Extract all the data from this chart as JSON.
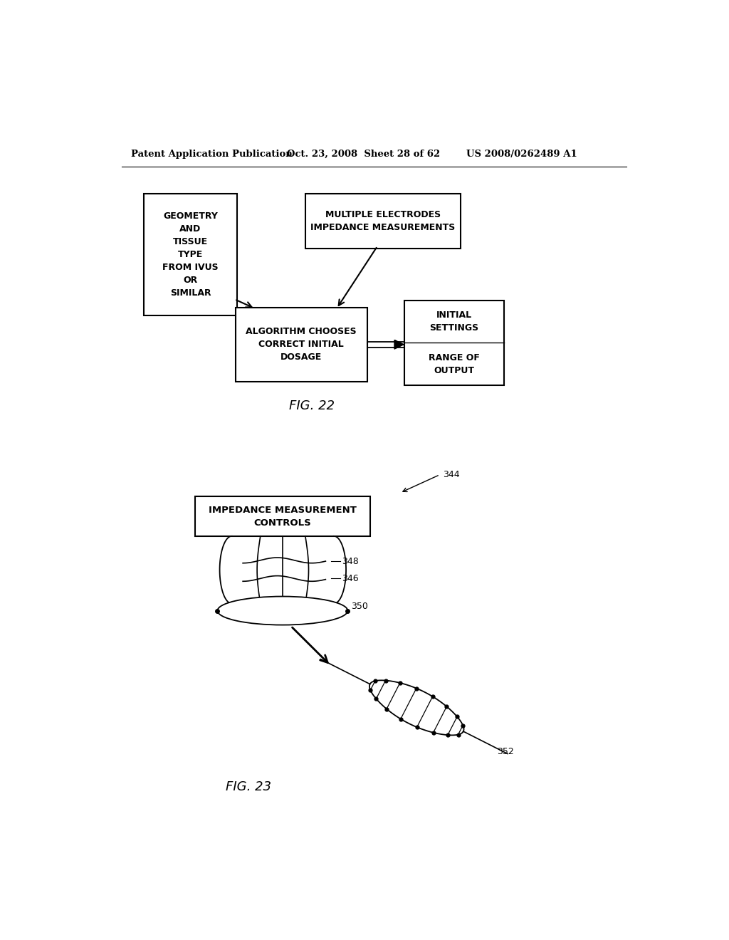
{
  "bg_color": "#ffffff",
  "header_left": "Patent Application Publication",
  "header_mid": "Oct. 23, 2008  Sheet 28 of 62",
  "header_right": "US 2008/0262489 A1",
  "fig22_label": "FIG. 22",
  "fig23_label": "FIG. 23",
  "box1_text": "GEOMETRY\nAND\nTISSUE\nTYPE\nFROM IVUS\nOR\nSIMILAR",
  "box2_text": "MULTIPLE ELECTRODES\nIMPEDANCE MEASUREMENTS",
  "box3_text": "ALGORITHM CHOOSES\nCORRECT INITIAL\nDOSAGE",
  "box4_top_text": "INITIAL\nSETTINGS",
  "box4_bottom_text": "RANGE OF\nOUTPUT",
  "box5_text": "IMPEDANCE MEASUREMENT\nCONTROLS",
  "label_344": "344",
  "label_346": "346",
  "label_348": "348",
  "label_350": "350",
  "label_352": "352"
}
